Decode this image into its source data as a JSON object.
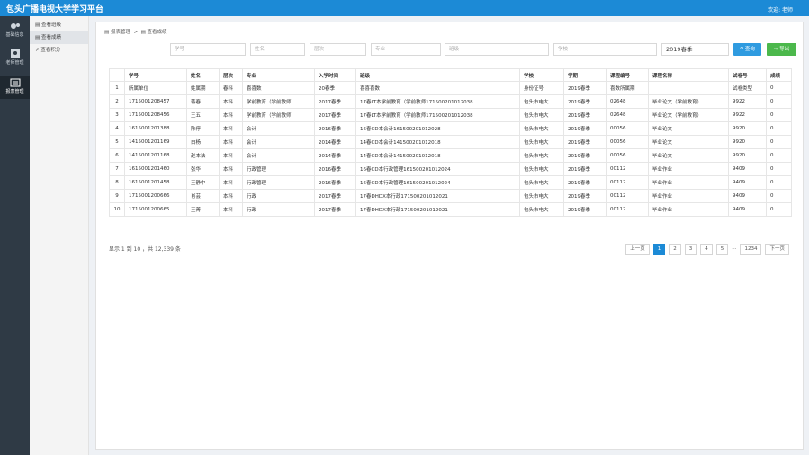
{
  "header": {
    "title": "包头广播电视大学学习平台",
    "user": "欢迎: 老师"
  },
  "nav": {
    "main": [
      "基础信息",
      "老师管理",
      "报表管理"
    ],
    "sub": [
      "查看班级",
      "查看成绩",
      "查看积分"
    ]
  },
  "breadcrumb": [
    "报表管理",
    "查看成绩"
  ],
  "filters": {
    "placeholders": [
      "学号",
      "姓名",
      "层次",
      "专业",
      "班级",
      "学校"
    ],
    "term": "2019春季",
    "buttons": [
      "查询",
      "导出"
    ]
  },
  "table": {
    "columns": [
      "学号",
      "姓名",
      "层次",
      "专业",
      "入学时间",
      "班级",
      "学校",
      "学期",
      "课程编号",
      "课程名称",
      "试卷号",
      "成绩"
    ],
    "rows": [
      [
        1,
        "所属单位",
        "姓属期",
        "春科",
        "喜喜数",
        "20春季",
        "喜喜喜数",
        "身份证号",
        "2019春季",
        "喜数所属期",
        null,
        "试卷类型",
        0
      ],
      [
        2,
        "1715001208457",
        "蒋春",
        "本科",
        "学前教育（学前教师",
        "2017春季",
        "17春LT本学前教育（学前教师171500201012038",
        "包头市电大",
        "2019春季",
        "02648",
        "毕业论文（学前教育）",
        "9922",
        0
      ],
      [
        3,
        "1715001208456",
        "王五",
        "本科",
        "学前教育（学前教师",
        "2017春季",
        "17春LT本学前教育（学前教师171500201012038",
        "包头市电大",
        "2019春季",
        "02648",
        "毕业论文（学前教育）",
        "9922",
        0
      ],
      [
        4,
        "1615001201388",
        "陈停",
        "本科",
        "会计",
        "2016春季",
        "16春CD本会计161500201012028",
        "包头市电大",
        "2019春季",
        "00056",
        "毕业论文",
        "9920",
        0
      ],
      [
        5,
        "1415001201169",
        "白杨",
        "本科",
        "会计",
        "2014春季",
        "14春CD本会计141500201012018",
        "包头市电大",
        "2019春季",
        "00056",
        "毕业论文",
        "9920",
        0
      ],
      [
        6,
        "1415001201168",
        "赵本法",
        "本科",
        "会计",
        "2014春季",
        "14春CD本会计141500201012018",
        "包头市电大",
        "2019春季",
        "00056",
        "毕业论文",
        "9920",
        0
      ],
      [
        7,
        "1615001201460",
        "张华",
        "本科",
        "行政管理",
        "2016春季",
        "16春CD本行政管理161500201012024",
        "包头市电大",
        "2019春季",
        "00112",
        "毕业作业",
        "9409",
        0
      ],
      [
        8,
        "1615001201458",
        "王静中",
        "本科",
        "行政管理",
        "2016春季",
        "16春CD本行政管理161500201012024",
        "包头市电大",
        "2019春季",
        "00112",
        "毕业作业",
        "9409",
        0
      ],
      [
        9,
        "1715001200666",
        "肖芸",
        "本科",
        "行政",
        "2017春季",
        "17春DHDX本行政171500201012021",
        "包头市电大",
        "2019春季",
        "00112",
        "毕业作业",
        "9409",
        0
      ],
      [
        10,
        "1715001200665",
        "王菁",
        "本科",
        "行政",
        "2017春季",
        "17春DHDX本行政171500201012021",
        "包头市电大",
        "2019春季",
        "00112",
        "毕业作业",
        "9409",
        0
      ]
    ]
  },
  "footer": {
    "summary": "显示 1 到 10 ，共 12,339 条",
    "pagination": [
      "上一页",
      "1",
      "2",
      "3",
      "4",
      "5",
      "...",
      "1234",
      "下一页"
    ]
  }
}
